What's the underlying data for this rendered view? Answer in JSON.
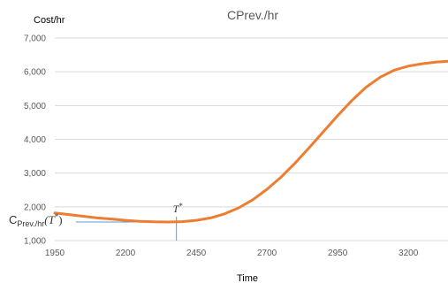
{
  "chart_data": {
    "type": "line",
    "title": "CPrev./hr",
    "xlabel": "Time",
    "ylabel": "Cost/hr",
    "xlim": [
      1950,
      3340
    ],
    "ylim": [
      1000,
      7000
    ],
    "x_ticks": [
      1950,
      2200,
      2450,
      2700,
      2950,
      3200
    ],
    "x_tick_labels": [
      "1950",
      "2200",
      "2450",
      "2700",
      "2950",
      "3200"
    ],
    "y_ticks": [
      1000,
      2000,
      3000,
      4000,
      5000,
      6000,
      7000
    ],
    "y_tick_labels": [
      "1,000",
      "2,000",
      "3,000",
      "4,000",
      "5,000",
      "6,000",
      "7,000"
    ],
    "grid": "horizontal",
    "series": [
      {
        "color": "#ED7D31",
        "x": [
          1950,
          2000,
          2050,
          2100,
          2150,
          2200,
          2250,
          2300,
          2350,
          2400,
          2450,
          2500,
          2550,
          2600,
          2650,
          2700,
          2750,
          2800,
          2850,
          2900,
          2950,
          3000,
          3050,
          3100,
          3150,
          3200,
          3250,
          3300,
          3340
        ],
        "y": [
          1820,
          1770,
          1720,
          1670,
          1640,
          1600,
          1570,
          1555,
          1550,
          1560,
          1600,
          1670,
          1790,
          1970,
          2210,
          2520,
          2880,
          3300,
          3760,
          4230,
          4700,
          5150,
          5540,
          5840,
          6050,
          6170,
          6240,
          6290,
          6310
        ]
      }
    ],
    "annotations": {
      "marker_x": 2380,
      "marker_y": 1550,
      "marker_label_main": "T",
      "marker_label_sup": "*",
      "ylabel_annotation_main": "C",
      "ylabel_annotation_sub": "Prev./hr",
      "ylabel_annotation_tail": "(T",
      "ylabel_annotation_sup": "*",
      "ylabel_annotation_close": ")"
    }
  },
  "colors": {
    "line": "#ED7D31",
    "grid": "#D9D9D9",
    "marker": "#5B9BD5",
    "text": "#595959"
  }
}
